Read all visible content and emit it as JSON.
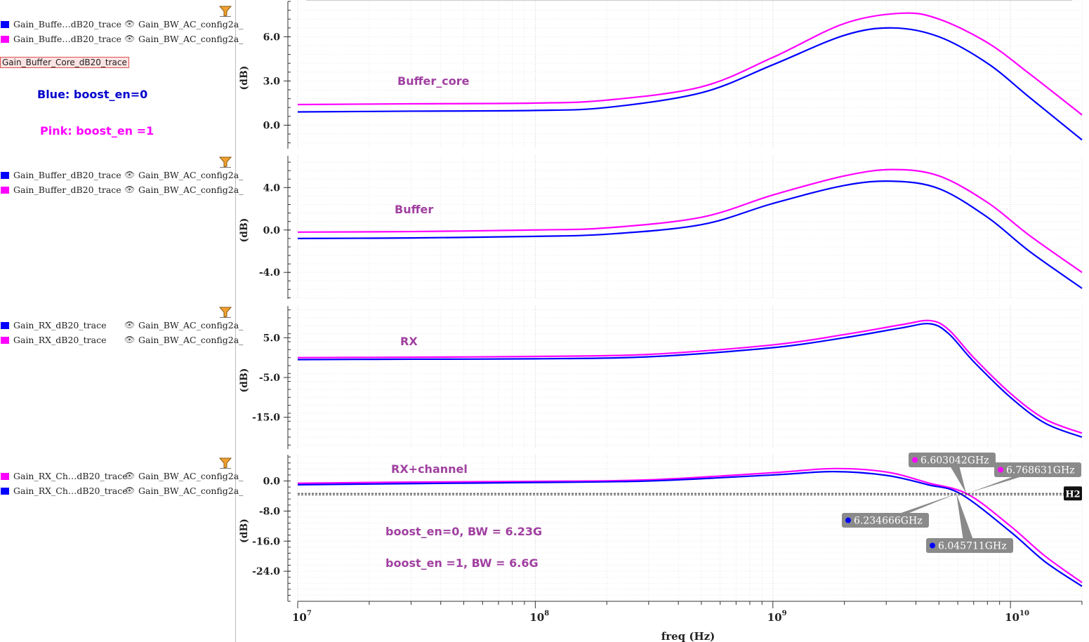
{
  "legend": {
    "groups": [
      {
        "rows": [
          {
            "trace": "Gain_Buffe…dB20_trace",
            "wave": "Gain_BW_AC_config2a_",
            "color": "#0000ff"
          },
          {
            "trace": "Gain_Buffe…dB20_trace",
            "wave": "Gain_BW_AC_config2a_",
            "color": "#ff00ff"
          }
        ]
      },
      {
        "rows": [
          {
            "trace": "Gain_Buffer_dB20_trace",
            "wave": "Gain_BW_AC_config2a_",
            "color": "#0000ff"
          },
          {
            "trace": "Gain_Buffer_dB20_trace",
            "wave": "Gain_BW_AC_config2a_",
            "color": "#ff00ff"
          }
        ]
      },
      {
        "rows": [
          {
            "trace": "Gain_RX_dB20_trace",
            "wave": "Gain_BW_AC_config2a_",
            "color": "#0000ff"
          },
          {
            "trace": "Gain_RX_dB20_trace",
            "wave": "Gain_BW_AC_config2a_",
            "color": "#ff00ff"
          }
        ]
      },
      {
        "rows": [
          {
            "trace": "Gain_RX_Ch…dB20_trace",
            "wave": "Gain_BW_AC_config2a_",
            "color": "#ff00ff"
          },
          {
            "trace": "Gain_RX_Ch…dB20_trace",
            "wave": "Gain_BW_AC_config2a_",
            "color": "#0000ff"
          }
        ]
      }
    ],
    "selected_label": "Gain_Buffer_Core_dB20_trace",
    "note_blue": "Blue: boost_en=0",
    "note_pink": "Pink: boost_en =1",
    "note_blue_color": "#0000cc",
    "note_pink_color": "#ff00ff"
  },
  "chart_data": [
    {
      "type": "line",
      "annotation": "Buffer_core",
      "ylabel": "(dB)",
      "x_scale": "log",
      "xlim": [
        10000000,
        20000000000
      ],
      "ylim": [
        -1.6,
        8.4
      ],
      "yticks": [
        0.0,
        3.0,
        6.0
      ],
      "ytick_labels": [
        "0.0",
        "3.0",
        "6.0"
      ],
      "series": [
        {
          "color": "#0000ff",
          "x": [
            10000000.0,
            30000000.0,
            100000000.0,
            200000000.0,
            500000000.0,
            1000000000.0,
            2000000000.0,
            3200000000.0,
            5000000000.0,
            8000000000.0,
            12000000000.0,
            20000000000.0
          ],
          "y": [
            0.9,
            0.95,
            1.0,
            1.2,
            2.2,
            4.1,
            6.1,
            6.6,
            6.0,
            4.2,
            1.9,
            -1.0
          ]
        },
        {
          "color": "#ff00ff",
          "x": [
            10000000.0,
            30000000.0,
            100000000.0,
            200000000.0,
            500000000.0,
            1000000000.0,
            2000000000.0,
            3500000000.0,
            5000000000.0,
            8000000000.0,
            12000000000.0,
            20000000000.0
          ],
          "y": [
            1.4,
            1.45,
            1.5,
            1.7,
            2.6,
            4.6,
            6.9,
            7.6,
            7.2,
            5.6,
            3.5,
            0.7
          ]
        }
      ]
    },
    {
      "type": "line",
      "annotation": "Buffer",
      "ylabel": "(dB)",
      "x_scale": "log",
      "xlim": [
        10000000,
        20000000000
      ],
      "ylim": [
        -6.5,
        7.0
      ],
      "yticks": [
        -4.0,
        0.0,
        4.0
      ],
      "ytick_labels": [
        "-4.0",
        "0.0",
        "4.0"
      ],
      "series": [
        {
          "color": "#0000ff",
          "x": [
            10000000.0,
            30000000.0,
            100000000.0,
            200000000.0,
            500000000.0,
            1000000000.0,
            2000000000.0,
            3200000000.0,
            5000000000.0,
            8000000000.0,
            12000000000.0,
            20000000000.0
          ],
          "y": [
            -0.8,
            -0.75,
            -0.6,
            -0.4,
            0.5,
            2.5,
            4.2,
            4.6,
            3.9,
            1.2,
            -2.0,
            -5.5
          ]
        },
        {
          "color": "#ff00ff",
          "x": [
            10000000.0,
            30000000.0,
            100000000.0,
            200000000.0,
            500000000.0,
            1000000000.0,
            2000000000.0,
            3200000000.0,
            5000000000.0,
            8000000000.0,
            12000000000.0,
            20000000000.0
          ],
          "y": [
            -0.2,
            -0.15,
            0.0,
            0.2,
            1.2,
            3.3,
            5.1,
            5.7,
            5.1,
            2.6,
            -0.5,
            -4.0
          ]
        }
      ]
    },
    {
      "type": "line",
      "annotation": "RX",
      "ylabel": "(dB)",
      "x_scale": "log",
      "xlim": [
        10000000,
        20000000000
      ],
      "ylim": [
        -23.0,
        13.0
      ],
      "yticks": [
        -15.0,
        -5.0,
        5.0
      ],
      "ytick_labels": [
        "-15.0",
        "-5.0",
        "5.0"
      ],
      "series": [
        {
          "color": "#0000ff",
          "x": [
            10000000.0,
            30000000.0,
            100000000.0,
            300000000.0,
            1000000000.0,
            2000000000.0,
            3500000000.0,
            4600000000.0,
            5500000000.0,
            7000000000.0,
            10000000000.0,
            14000000000.0,
            20000000000.0
          ],
          "y": [
            -0.5,
            -0.4,
            -0.3,
            0.2,
            2.5,
            5.0,
            7.5,
            8.5,
            6.0,
            -1.0,
            -10.0,
            -16.5,
            -20.0
          ]
        },
        {
          "color": "#ff00ff",
          "x": [
            10000000.0,
            30000000.0,
            100000000.0,
            300000000.0,
            1000000000.0,
            2000000000.0,
            3500000000.0,
            4600000000.0,
            5500000000.0,
            7000000000.0,
            10000000000.0,
            14000000000.0,
            20000000000.0
          ],
          "y": [
            0.0,
            0.1,
            0.3,
            0.8,
            3.2,
            5.8,
            8.3,
            9.3,
            7.0,
            0.0,
            -9.0,
            -15.5,
            -19.0
          ]
        }
      ]
    },
    {
      "type": "line",
      "annotation": "RX+channel",
      "annotations_extra": [
        "boost_en=0, BW = 6.23G",
        "boost_en =1, BW = 6.6G"
      ],
      "ylabel": "(dB)",
      "x_scale": "log",
      "xlim": [
        10000000,
        20000000000
      ],
      "ylim": [
        -32.0,
        7.0
      ],
      "yticks": [
        -24.0,
        -16.0,
        -8.0,
        0.0
      ],
      "ytick_labels": [
        "-24.0",
        "-16.0",
        "-8.0",
        "0.0"
      ],
      "hline": {
        "y": -3.5,
        "label": "H2"
      },
      "markers": [
        {
          "label": "6.603042GHz",
          "color": "#ff00ff"
        },
        {
          "label": "6.768631GHz",
          "color": "#ff00ff"
        },
        {
          "label": "6.234666GHz",
          "color": "#0000ff"
        },
        {
          "label": "6.045711GHz",
          "color": "#0000ff"
        }
      ],
      "series": [
        {
          "color": "#ff00ff",
          "x": [
            10000000.0,
            30000000.0,
            100000000.0,
            300000000.0,
            1000000000.0,
            1800000000.0,
            3000000000.0,
            4500000000.0,
            6600000000.0,
            10000000000.0,
            14000000000.0,
            20000000000.0
          ],
          "y": [
            -0.6,
            -0.3,
            -0.1,
            0.3,
            2.2,
            3.3,
            2.4,
            -0.5,
            -3.5,
            -12.0,
            -20.0,
            -27.0
          ]
        },
        {
          "color": "#0000ff",
          "x": [
            10000000.0,
            30000000.0,
            100000000.0,
            300000000.0,
            1000000000.0,
            1800000000.0,
            3000000000.0,
            4500000000.0,
            6200000000.0,
            10000000000.0,
            14000000000.0,
            20000000000.0
          ],
          "y": [
            -1.0,
            -0.7,
            -0.4,
            0.0,
            1.6,
            2.5,
            1.5,
            -1.0,
            -3.5,
            -13.5,
            -21.5,
            -28.0
          ]
        }
      ]
    }
  ],
  "xaxis": {
    "label": "freq (Hz)",
    "major_ticks": [
      10000000,
      100000000,
      1000000000,
      10000000000
    ],
    "tick_bases": [
      "10",
      "10",
      "10",
      "10"
    ],
    "tick_exponents": [
      "7",
      "8",
      "9",
      "10"
    ]
  }
}
